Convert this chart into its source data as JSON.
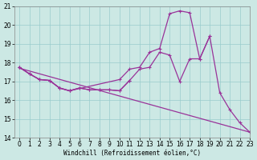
{
  "bg_color": "#cce8e4",
  "line_color": "#993399",
  "grid_color": "#99cccc",
  "xlabel": "Windchill (Refroidissement éolien,°C)",
  "ylim": [
    14,
    21
  ],
  "xlim": [
    -0.5,
    23
  ],
  "yticks": [
    14,
    15,
    16,
    17,
    18,
    19,
    20,
    21
  ],
  "xticks": [
    0,
    1,
    2,
    3,
    4,
    5,
    6,
    7,
    8,
    9,
    10,
    11,
    12,
    13,
    14,
    15,
    16,
    17,
    18,
    19,
    20,
    21,
    22,
    23
  ],
  "line_diagonal": {
    "x": [
      0,
      23
    ],
    "y": [
      17.7,
      14.3
    ],
    "marker": false
  },
  "line_upper": {
    "x": [
      0,
      1,
      2,
      3,
      4,
      5,
      10,
      11,
      12,
      13,
      14,
      15,
      16,
      17,
      18,
      19
    ],
    "y": [
      17.75,
      17.4,
      17.1,
      17.05,
      16.65,
      16.5,
      17.1,
      17.65,
      17.75,
      18.55,
      18.75,
      20.6,
      20.75,
      20.65,
      18.2,
      19.4
    ],
    "marker": true
  },
  "line_mid": {
    "x": [
      0,
      1,
      2,
      3,
      4,
      5,
      6,
      7,
      8,
      9,
      10,
      11,
      12,
      13,
      14,
      15,
      16,
      17,
      18,
      19,
      20,
      21,
      22,
      23
    ],
    "y": [
      17.75,
      17.4,
      17.1,
      17.05,
      16.65,
      16.5,
      16.65,
      16.55,
      16.55,
      16.55,
      16.5,
      17.05,
      17.65,
      17.75,
      18.55,
      18.4,
      17.0,
      18.2,
      18.2,
      19.4,
      16.4,
      15.5,
      14.8,
      14.3
    ],
    "marker": true
  },
  "line_low": {
    "x": [
      0,
      1,
      2,
      3,
      4,
      5,
      6,
      7,
      8,
      9,
      10,
      11
    ],
    "y": [
      17.75,
      17.4,
      17.1,
      17.05,
      16.65,
      16.5,
      16.65,
      16.55,
      16.55,
      16.55,
      16.5,
      17.05
    ],
    "marker": true
  }
}
